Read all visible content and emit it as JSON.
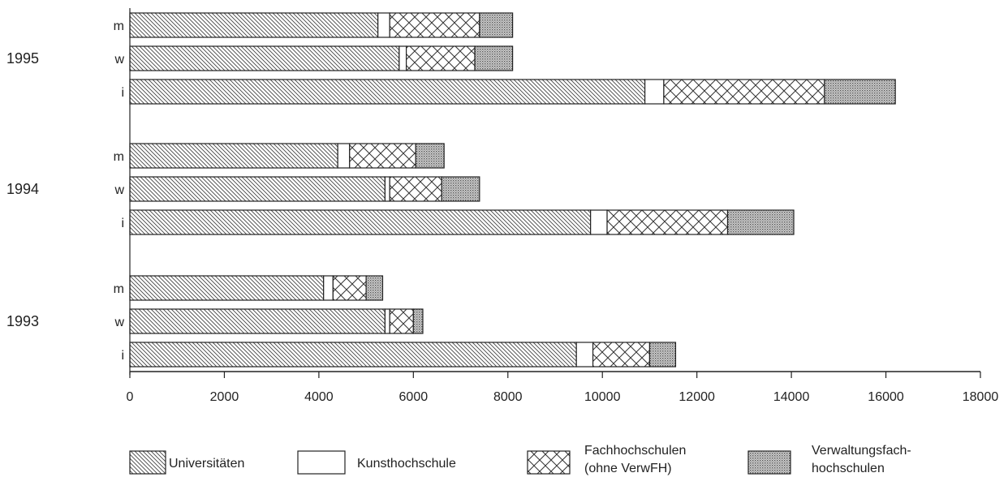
{
  "chart_data": {
    "type": "bar",
    "orientation": "horizontal",
    "stacked": true,
    "xlim": [
      0,
      18000
    ],
    "x_ticks": [
      0,
      2000,
      4000,
      6000,
      8000,
      10000,
      12000,
      14000,
      16000,
      18000
    ],
    "x_tick_labels": [
      "0",
      "2000",
      "4000",
      "6000",
      "8000",
      "10000",
      "12000",
      "14000",
      "16000",
      "18000"
    ],
    "grid": false,
    "legend_position": "bottom",
    "groups": [
      {
        "label": "1995",
        "bars": [
          {
            "label": "m",
            "values": [
              5250,
              250,
              1900,
              700
            ]
          },
          {
            "label": "w",
            "values": [
              5700,
              150,
              1450,
              800
            ]
          },
          {
            "label": "i",
            "values": [
              10900,
              400,
              3400,
              1500
            ]
          }
        ]
      },
      {
        "label": "1994",
        "bars": [
          {
            "label": "m",
            "values": [
              4400,
              250,
              1400,
              600
            ]
          },
          {
            "label": "w",
            "values": [
              5400,
              100,
              1100,
              800
            ]
          },
          {
            "label": "i",
            "values": [
              9750,
              350,
              2550,
              1400
            ]
          }
        ]
      },
      {
        "label": "1993",
        "bars": [
          {
            "label": "m",
            "values": [
              4100,
              200,
              700,
              350
            ]
          },
          {
            "label": "w",
            "values": [
              5400,
              100,
              500,
              200
            ]
          },
          {
            "label": "i",
            "values": [
              9450,
              350,
              1200,
              550
            ]
          }
        ]
      }
    ],
    "series": [
      {
        "name": "Universitäten",
        "pattern": "fine-hatch"
      },
      {
        "name": "Kunsthochschule",
        "pattern": "blank"
      },
      {
        "name": "Fachhochschulen (ohne VerwFH)",
        "name_lines": [
          "Fachhochschulen",
          "(ohne VerwFH)"
        ],
        "pattern": "cross-hatch"
      },
      {
        "name": "Verwaltungsfachhochschulen",
        "name_lines": [
          "Verwaltungsfach-",
          "hochschulen"
        ],
        "pattern": "dots"
      }
    ]
  }
}
